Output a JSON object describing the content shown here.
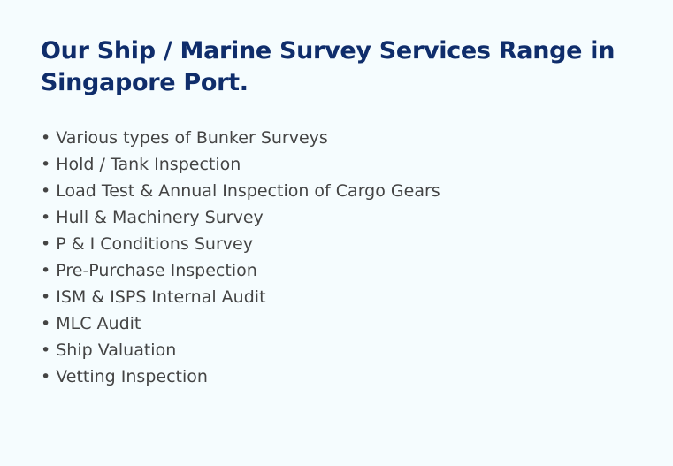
{
  "heading": "Our Ship / Marine Survey Services Range in Singapore Port.",
  "services": [
    "• Various types of Bunker Surveys",
    "• Hold / Tank Inspection",
    "• Load Test & Annual Inspection of Cargo Gears",
    "• Hull & Machinery Survey",
    "• P & I Conditions Survey",
    "• Pre-Purchase Inspection",
    "• ISM & ISPS Internal Audit",
    "• MLC Audit",
    "• Ship Valuation",
    "• Vetting Inspection"
  ],
  "colors": {
    "background": "#f5fcfe",
    "heading": "#0f2d6b",
    "text": "#444444"
  }
}
